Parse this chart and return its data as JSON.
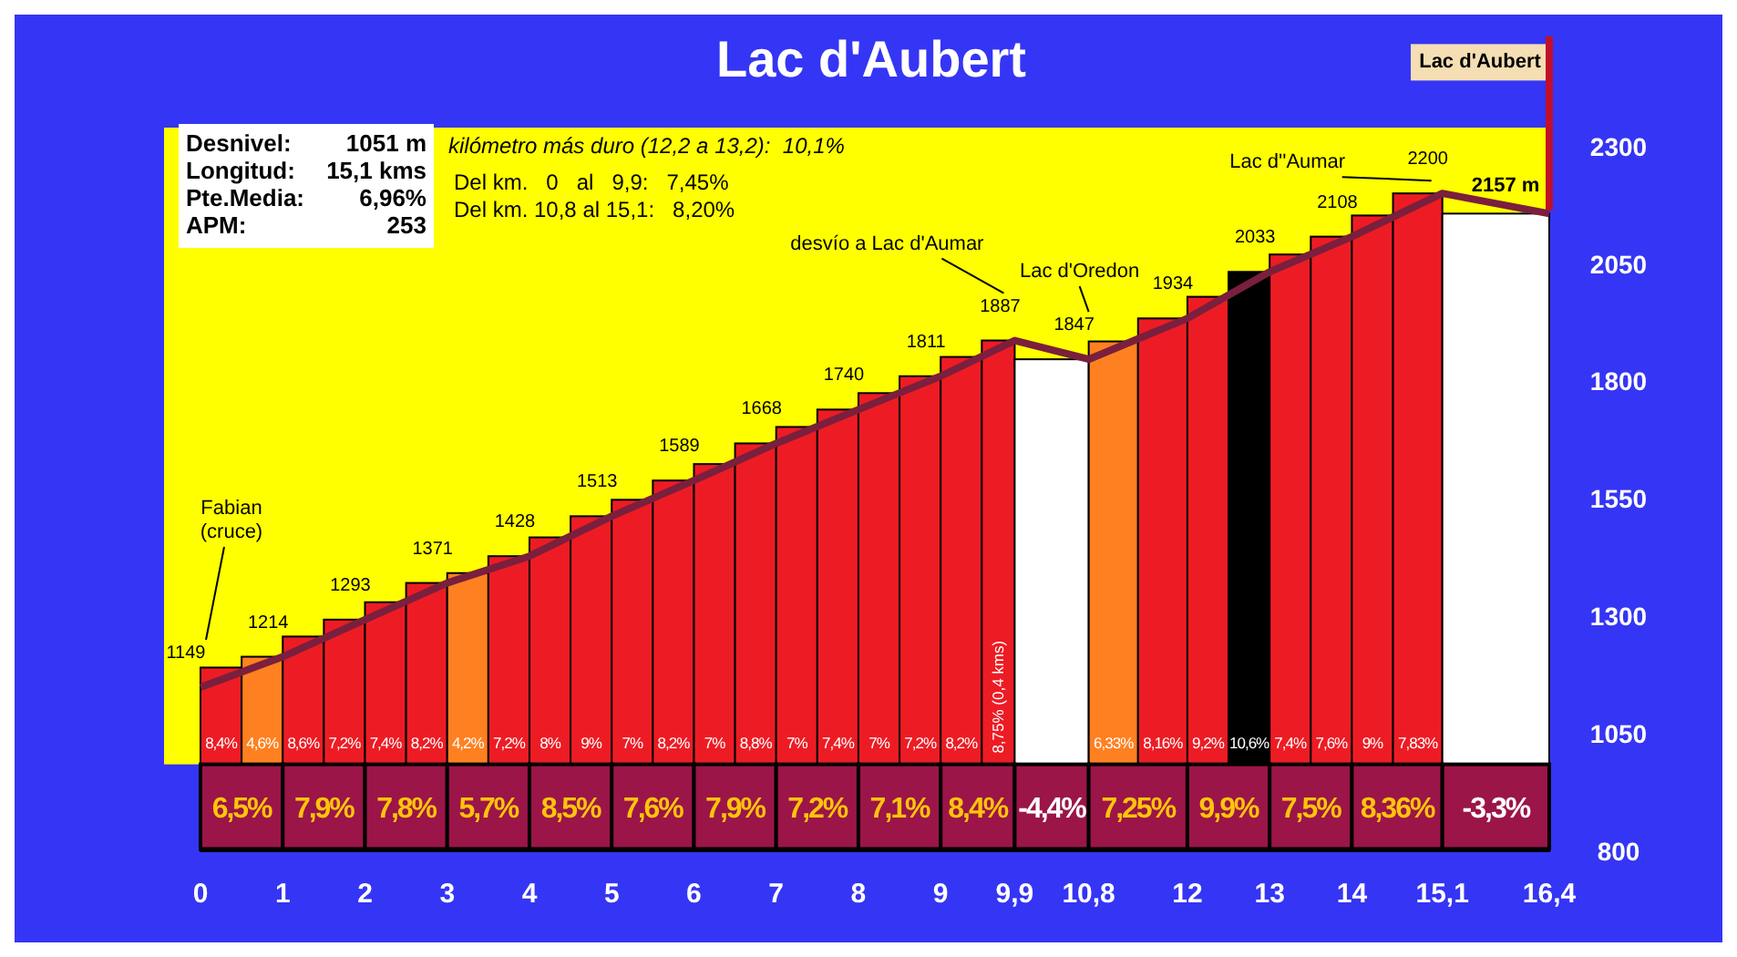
{
  "chart_data": {
    "type": "histogram",
    "title": "Lac d'Aubert",
    "bins": [
      0,
      0.5,
      1,
      1.5,
      2,
      2.5,
      3,
      3.5,
      4,
      4.5,
      5,
      5.5,
      6,
      6.5,
      7,
      7.5,
      8,
      8.5,
      9,
      9.5,
      9.9,
      10.8,
      11.4,
      12,
      12.5,
      13,
      13.5,
      14,
      14.5,
      15.1,
      16.4
    ],
    "values": [
      1191,
      1214,
      1257,
      1293,
      1330,
      1371,
      1392,
      1428,
      1468,
      1513,
      1548,
      1589,
      1624,
      1668,
      1703,
      1740,
      1775,
      1811,
      1852,
      1887,
      1847,
      1885,
      1934,
      1980,
      2033,
      2070,
      2108,
      2153,
      2200,
      2157
    ],
    "colors": [
      "#ed1c24",
      "#ff8020",
      "#ed1c24",
      "#ed1c24",
      "#ed1c24",
      "#ed1c24",
      "#ff8020",
      "#ed1c24",
      "#ed1c24",
      "#ed1c24",
      "#ed1c24",
      "#ed1c24",
      "#ed1c24",
      "#ed1c24",
      "#ed1c24",
      "#ed1c24",
      "#ed1c24",
      "#ed1c24",
      "#ed1c24",
      "#ed1c24",
      "#ffffff",
      "#ff8020",
      "#ed1c24",
      "#ed1c24",
      "#000000",
      "#ed1c24",
      "#ed1c24",
      "#ed1c24",
      "#ed1c24",
      "#ffffff"
    ],
    "series": [
      {
        "type": "line",
        "color": "#7a1f3d",
        "x": [
          0,
          1,
          2,
          3,
          4,
          5,
          6,
          7,
          8,
          9,
          9.9,
          10.8,
          12,
          13,
          14,
          15.1,
          16.4
        ],
        "values": [
          1149,
          1214,
          1293,
          1371,
          1428,
          1513,
          1589,
          1668,
          1740,
          1811,
          1887,
          1847,
          1934,
          2033,
          2108,
          2200,
          2157
        ],
        "value_labels": [
          "1149",
          "1214",
          "1293",
          "1371",
          "1428",
          "1513",
          "1589",
          "1668",
          "1740",
          "1811",
          "1887",
          "1847",
          "1934",
          "2033",
          "2108",
          "2200",
          "2157 m"
        ]
      }
    ],
    "xlim": [
      0,
      16.4
    ],
    "xticks": [
      0,
      1,
      2,
      3,
      4,
      5,
      6,
      7,
      8,
      9,
      {
        "value": 9.9,
        "label": "9,9"
      },
      {
        "value": 10.8,
        "label": "10,8"
      },
      12,
      13,
      14,
      {
        "value": 15.1,
        "label": "15,1"
      },
      {
        "value": 16.4,
        "label": "16,4"
      }
    ],
    "ylim": [
      800,
      2340
    ],
    "yticks": [
      800,
      1050,
      1300,
      1550,
      1800,
      2050,
      2300
    ],
    "annotations": [
      "Desnivel: 1051 m",
      "Longitud: 15,1 kms",
      "Pte.Media: 6,96%",
      "APM: 253",
      "kilómetro más duro (12,2 a 13,2):  10,1%",
      "Del km.   0   al   9,9:   7,45%",
      "Del km. 10,8 al 15,1:   8,20%",
      "Lac d'Aubert",
      "Fabian\n(cruce)",
      "desvío a Lac d'Aumar",
      "Lac d'Oredon",
      "Lac d''Aumar",
      "6,5%",
      "7,9%",
      "7,8%",
      "5,7%",
      "8,5%",
      "7,6%",
      "7,9%",
      "7,2%",
      "7,1%",
      "8,4%",
      "-4,4%",
      "7,25%",
      "9,9%",
      "7,5%",
      "8,36%",
      "-3,3%",
      "8,4%",
      "4,6%",
      "8,6%",
      "7,2%",
      "7,4%",
      "8,2%",
      "4,2%",
      "7,2%",
      "8%",
      "9%",
      "7%",
      "8,2%",
      "7%",
      "8,8%",
      "7%",
      "7,4%",
      "7%",
      "7,2%",
      "8,2%",
      "8,75% (0,4 kms)",
      null,
      "6,33%",
      "8,16%",
      "9,2%",
      "10,6%",
      "7,4%",
      "7,6%",
      "9%",
      "7,83%",
      null
    ]
  }
}
